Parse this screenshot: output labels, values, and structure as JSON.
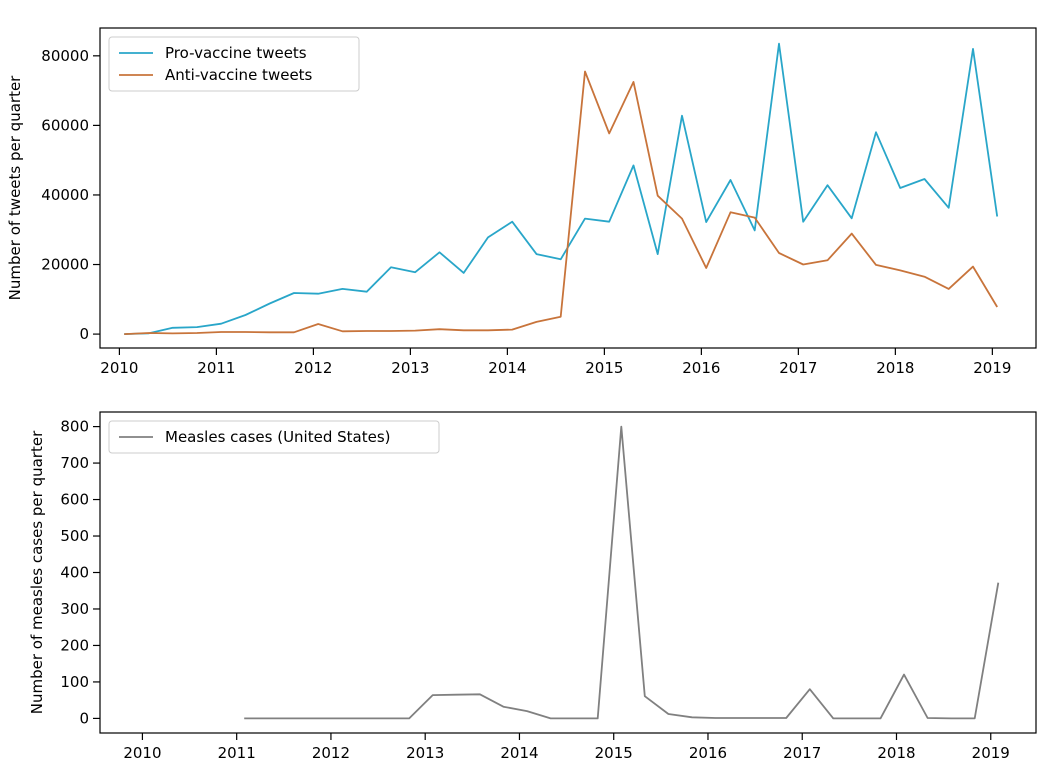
{
  "chart_data": [
    {
      "type": "line",
      "title": "",
      "xlabel": "",
      "ylabel": "Number of tweets per quarter",
      "xlim": [
        2009.8,
        2019.45
      ],
      "ylim": [
        -4000,
        88000
      ],
      "x_ticks": [
        2010,
        2011,
        2012,
        2013,
        2014,
        2015,
        2016,
        2017,
        2018,
        2019
      ],
      "x_tick_labels": [
        "2010",
        "2011",
        "2012",
        "2013",
        "2014",
        "2015",
        "2016",
        "2017",
        "2018",
        "2019"
      ],
      "y_ticks": [
        0,
        20000,
        40000,
        60000,
        80000
      ],
      "y_tick_labels": [
        "0",
        "20000",
        "40000",
        "60000",
        "80000"
      ],
      "grid": false,
      "legend_position": "top-left",
      "series": [
        {
          "name": "Pro-vaccine tweets",
          "color": "#29a6c9",
          "x": [
            2010.05,
            2010.3,
            2010.55,
            2010.8,
            2011.05,
            2011.3,
            2011.55,
            2011.8,
            2012.05,
            2012.3,
            2012.55,
            2012.8,
            2013.05,
            2013.3,
            2013.55,
            2013.8,
            2014.05,
            2014.3,
            2014.55,
            2014.8,
            2015.05,
            2015.3,
            2015.55,
            2015.8,
            2016.05,
            2016.3,
            2016.55,
            2016.8,
            2017.05,
            2017.3,
            2017.55,
            2017.8,
            2018.05,
            2018.3,
            2018.55,
            2018.8,
            2019.05
          ],
          "y": [
            0,
            200,
            1800,
            2000,
            3000,
            5500,
            8800,
            11800,
            11600,
            13000,
            12200,
            19200,
            17800,
            23500,
            17600,
            27800,
            32300,
            23000,
            21500,
            33200,
            32300,
            48500,
            23000,
            62800,
            32200,
            44300,
            29800,
            83500,
            32300,
            42800,
            33300,
            58000,
            42000,
            44600,
            36300,
            82000,
            33800
          ]
        },
        {
          "name": "Anti-vaccine tweets",
          "color": "#c8743b",
          "x": [
            2010.05,
            2010.3,
            2010.55,
            2010.8,
            2011.05,
            2011.3,
            2011.55,
            2011.8,
            2012.05,
            2012.3,
            2012.55,
            2012.8,
            2013.05,
            2013.3,
            2013.55,
            2013.8,
            2014.05,
            2014.3,
            2014.55,
            2014.8,
            2015.05,
            2015.3,
            2015.55,
            2015.8,
            2016.05,
            2016.3,
            2016.55,
            2016.8,
            2017.05,
            2017.3,
            2017.55,
            2017.8,
            2018.05,
            2018.3,
            2018.55,
            2018.8,
            2019.05
          ],
          "y": [
            0,
            300,
            200,
            300,
            600,
            600,
            500,
            500,
            2900,
            800,
            900,
            900,
            1000,
            1400,
            1100,
            1100,
            1300,
            3500,
            5000,
            75500,
            57700,
            72500,
            39800,
            33200,
            19000,
            35000,
            33500,
            23300,
            20000,
            21200,
            28900,
            19900,
            18300,
            16500,
            13000,
            19400,
            7800
          ]
        }
      ]
    },
    {
      "type": "line",
      "title": "",
      "xlabel": "",
      "ylabel": "Number of measles cases per quarter",
      "xlim": [
        2009.55,
        2019.48
      ],
      "ylim": [
        -40,
        840
      ],
      "x_ticks": [
        2010,
        2011,
        2012,
        2013,
        2014,
        2015,
        2016,
        2017,
        2018,
        2019
      ],
      "x_tick_labels": [
        "2010",
        "2011",
        "2012",
        "2013",
        "2014",
        "2015",
        "2016",
        "2017",
        "2018",
        "2019"
      ],
      "y_ticks": [
        0,
        100,
        200,
        300,
        400,
        500,
        600,
        700,
        800
      ],
      "y_tick_labels": [
        "0",
        "100",
        "200",
        "300",
        "400",
        "500",
        "600",
        "700",
        "800"
      ],
      "grid": false,
      "legend_position": "top-left",
      "series": [
        {
          "name": "Measles cases (United States)",
          "color": "#808080",
          "x": [
            2011.08,
            2011.33,
            2011.58,
            2011.83,
            2012.08,
            2012.33,
            2012.58,
            2012.83,
            2013.08,
            2013.33,
            2013.58,
            2013.83,
            2014.08,
            2014.33,
            2014.58,
            2014.83,
            2015.08,
            2015.33,
            2015.58,
            2015.83,
            2016.08,
            2016.33,
            2016.58,
            2016.83,
            2017.08,
            2017.33,
            2017.58,
            2017.83,
            2018.08,
            2018.33,
            2018.58,
            2018.83,
            2019.08
          ],
          "y": [
            0,
            0,
            0,
            0,
            0,
            0,
            0,
            0,
            64,
            65,
            66,
            32,
            20,
            0,
            0,
            0,
            800,
            61,
            12,
            3,
            1,
            1,
            1,
            1,
            80,
            0,
            0,
            0,
            120,
            1,
            0,
            0,
            372
          ]
        }
      ]
    }
  ]
}
